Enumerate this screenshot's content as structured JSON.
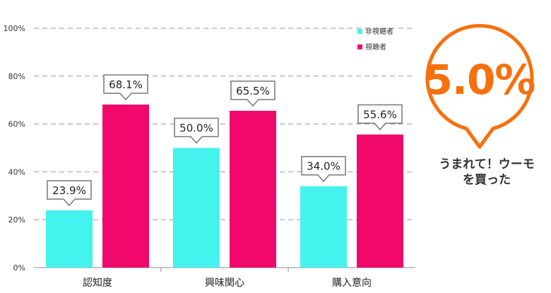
{
  "chart_data": {
    "type": "bar",
    "categories": [
      "認知度",
      "興味関心",
      "購入意向"
    ],
    "series": [
      {
        "name": "非視聴者",
        "color": "#44f2ee",
        "values": [
          23.9,
          50.0,
          34.0
        ],
        "labels": [
          "23.9%",
          "50.0%",
          "34.0%"
        ]
      },
      {
        "name": "視聴者",
        "color": "#f0086b",
        "values": [
          68.1,
          65.5,
          55.6
        ],
        "labels": [
          "68.1%",
          "65.5%",
          "55.6%"
        ]
      }
    ],
    "ylim": [
      0,
      100
    ],
    "yticks": [
      "0%",
      "20%",
      "40%",
      "60%",
      "80%",
      "100%"
    ],
    "grid": true,
    "legend_position": "top-right"
  },
  "callout": {
    "value": "5.0%",
    "caption_line1": "うまれて！ウーモ",
    "caption_line2": "を買った",
    "accent_color": "#f7700f"
  }
}
